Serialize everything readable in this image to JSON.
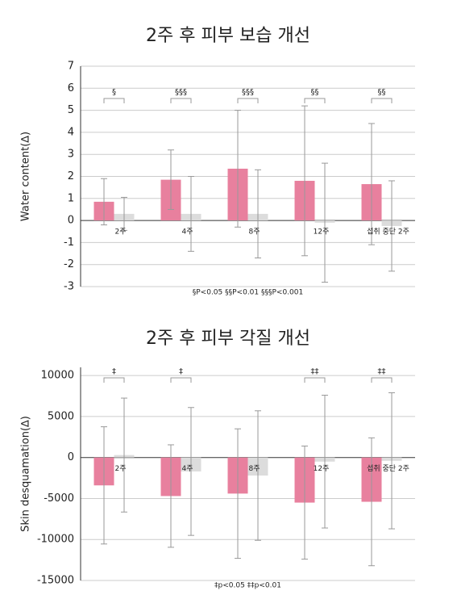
{
  "chart_data": [
    {
      "type": "bar",
      "title": "2주 후 피부 보습 개선",
      "y_label": "Water content(∆)",
      "categories": [
        "2주",
        "4주",
        "8주",
        "12주",
        "섭취 중단 2주"
      ],
      "series": [
        {
          "color": "#e8809e",
          "values": [
            0.85,
            1.85,
            2.35,
            1.8,
            1.65
          ],
          "errors": [
            1.05,
            1.35,
            2.65,
            3.4,
            2.75
          ]
        },
        {
          "color": "#dcdcdc",
          "values": [
            0.3,
            0.3,
            0.3,
            -0.1,
            -0.25
          ],
          "errors": [
            0.75,
            1.7,
            2.0,
            2.7,
            2.05
          ]
        }
      ],
      "significance": [
        "§",
        "§§§",
        "§§§",
        "§§",
        "§§"
      ],
      "footnote": "§P<0.05  §§P<0.01  §§§P<0.001",
      "ylim": [
        -3,
        7
      ],
      "yticks": [
        -3,
        -2,
        -1,
        0,
        1,
        2,
        3,
        4,
        5,
        6,
        7
      ],
      "grid": true
    },
    {
      "type": "bar",
      "title": "2주 후 피부 각질 개선",
      "y_label": "Skin desquamation(∆)",
      "categories": [
        "2주",
        "4주",
        "8주",
        "12주",
        "섭취 중단 2주"
      ],
      "series": [
        {
          "color": "#e8809e",
          "values": [
            -3400,
            -4700,
            -4400,
            -5500,
            -5400
          ],
          "errors": [
            7150,
            6250,
            7900,
            6900,
            7800
          ]
        },
        {
          "color": "#dcdcdc",
          "values": [
            300,
            -1700,
            -2200,
            -500,
            -400
          ],
          "errors": [
            6950,
            7800,
            7900,
            8100,
            8300
          ]
        }
      ],
      "significance": [
        "‡",
        "‡",
        null,
        "‡‡",
        "‡‡"
      ],
      "footnote": "‡p<0.05  ‡‡p<0.01",
      "ylim": [
        -15000,
        11000
      ],
      "yticks": [
        -15000,
        -10000,
        -5000,
        0,
        5000,
        10000
      ],
      "grid": true
    }
  ]
}
